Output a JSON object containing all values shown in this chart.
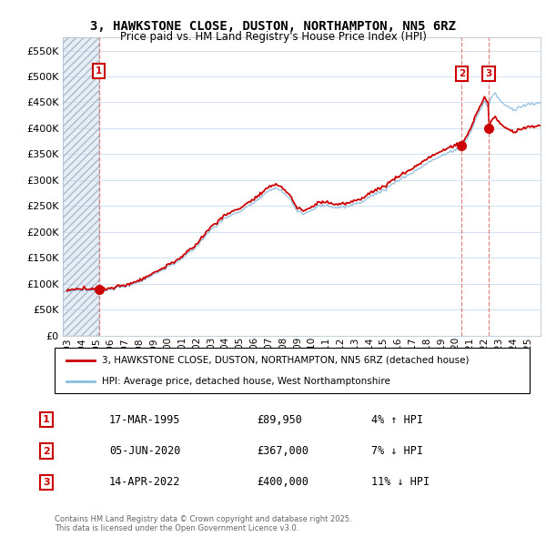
{
  "title": "3, HAWKSTONE CLOSE, DUSTON, NORTHAMPTON, NN5 6RZ",
  "subtitle": "Price paid vs. HM Land Registry's House Price Index (HPI)",
  "legend_line1": "3, HAWKSTONE CLOSE, DUSTON, NORTHAMPTON, NN5 6RZ (detached house)",
  "legend_line2": "HPI: Average price, detached house, West Northamptonshire",
  "footer": "Contains HM Land Registry data © Crown copyright and database right 2025.\nThis data is licensed under the Open Government Licence v3.0.",
  "transactions": [
    {
      "num": 1,
      "date": "17-MAR-1995",
      "price": 89950,
      "pct": "4%",
      "dir": "↑",
      "year": 1995.21
    },
    {
      "num": 2,
      "date": "05-JUN-2020",
      "price": 367000,
      "pct": "7%",
      "dir": "↓",
      "year": 2020.42
    },
    {
      "num": 3,
      "date": "14-APR-2022",
      "price": 400000,
      "pct": "11%",
      "dir": "↓",
      "year": 2022.29
    }
  ],
  "house_color": "#cc0000",
  "hpi_color": "#88bbdd",
  "vline_color": "#dd6666",
  "marker_color": "#cc0000",
  "ylim": [
    0,
    575000
  ],
  "yticks": [
    0,
    50000,
    100000,
    150000,
    200000,
    250000,
    300000,
    350000,
    400000,
    450000,
    500000,
    550000
  ],
  "xlim_start": 1992.7,
  "xlim_end": 2025.9,
  "xticks": [
    1993,
    1994,
    1995,
    1996,
    1997,
    1998,
    1999,
    2000,
    2001,
    2002,
    2003,
    2004,
    2005,
    2006,
    2007,
    2008,
    2009,
    2010,
    2011,
    2012,
    2013,
    2014,
    2015,
    2016,
    2017,
    2018,
    2019,
    2020,
    2021,
    2022,
    2023,
    2024,
    2025
  ],
  "trans1_price": 89950,
  "trans2_price": 367000,
  "trans3_price": 400000,
  "trans1_year": 1995.21,
  "trans2_year": 2020.42,
  "trans3_year": 2022.29
}
